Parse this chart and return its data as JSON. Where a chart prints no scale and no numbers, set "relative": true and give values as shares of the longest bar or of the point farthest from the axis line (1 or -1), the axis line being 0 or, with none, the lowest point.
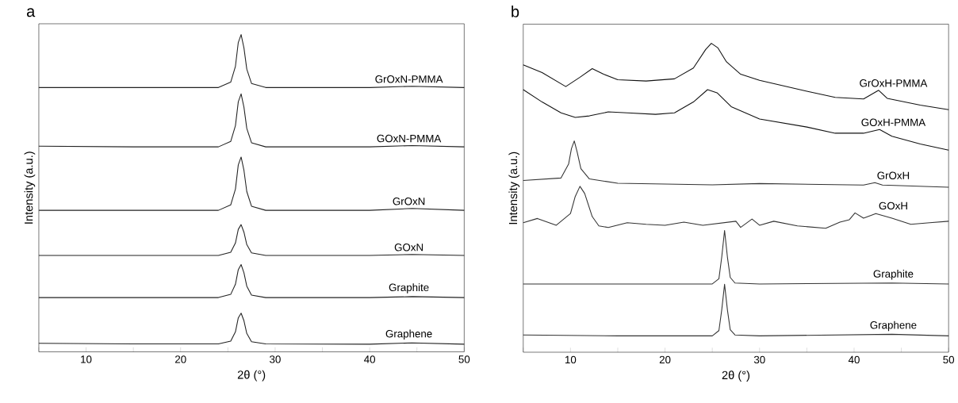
{
  "chart_data": [
    {
      "type": "line",
      "title": "a",
      "xlabel": "2θ (°)",
      "ylabel": "Intensity (a.u.)",
      "relative": true,
      "xlim": [
        5,
        50
      ],
      "xticks": [
        {
          "value": 5,
          "label": null
        },
        10,
        {
          "value": 15,
          "label": null
        },
        20,
        {
          "value": 25,
          "label": null
        },
        30,
        {
          "value": 35,
          "label": null
        },
        40,
        {
          "value": 45,
          "label": null
        },
        50
      ],
      "x": [
        5,
        15,
        24,
        25.3,
        25.8,
        26.1,
        26.4,
        26.7,
        27.0,
        27.5,
        29,
        40,
        44.5,
        50
      ],
      "series": [
        {
          "name": "GrOxN-PMMA",
          "color": "#222222",
          "values": [
            0.833,
            0.833,
            0.833,
            0.85,
            0.9,
            0.975,
            1.0,
            0.958,
            0.891,
            0.846,
            0.833,
            0.833,
            0.837,
            0.833
          ]
        },
        {
          "name": "GOxN-PMMA",
          "color": "#222222",
          "values": [
            0.648,
            0.646,
            0.646,
            0.663,
            0.713,
            0.788,
            0.813,
            0.771,
            0.704,
            0.659,
            0.646,
            0.646,
            0.65,
            0.646
          ]
        },
        {
          "name": "GrOxN",
          "color": "#222222",
          "values": [
            0.446,
            0.446,
            0.446,
            0.463,
            0.513,
            0.589,
            0.614,
            0.572,
            0.505,
            0.459,
            0.446,
            0.446,
            0.452,
            0.446
          ]
        },
        {
          "name": "GOxN",
          "color": "#222222",
          "values": [
            0.304,
            0.304,
            0.304,
            0.314,
            0.343,
            0.386,
            0.401,
            0.377,
            0.338,
            0.312,
            0.304,
            0.304,
            0.307,
            0.304
          ]
        },
        {
          "name": "Graphite",
          "color": "#222222",
          "values": [
            0.171,
            0.171,
            0.171,
            0.181,
            0.213,
            0.259,
            0.275,
            0.249,
            0.207,
            0.179,
            0.171,
            0.171,
            0.174,
            0.171
          ]
        },
        {
          "name": "Graphene",
          "color": "#222222",
          "values": [
            0.027,
            0.025,
            0.025,
            0.034,
            0.063,
            0.107,
            0.122,
            0.098,
            0.058,
            0.032,
            0.025,
            0.024,
            0.028,
            0.024
          ]
        }
      ]
    },
    {
      "type": "line",
      "title": "b",
      "xlabel": "2θ (°)",
      "ylabel": "Intensity (a.u.)",
      "relative": true,
      "xlim": [
        5,
        50
      ],
      "xticks": [
        {
          "value": 5,
          "label": null
        },
        10,
        {
          "value": 15,
          "label": null
        },
        20,
        {
          "value": 25,
          "label": null
        },
        30,
        {
          "value": 35,
          "label": null
        },
        40,
        {
          "value": 45,
          "label": null
        },
        50
      ],
      "series": [
        {
          "name": "GrOxH-PMMA",
          "color": "#111111",
          "x": [
            5,
            7,
            9.5,
            11,
            12.3,
            13.5,
            15,
            18,
            21,
            23,
            24.3,
            24.9,
            25.6,
            26.5,
            28,
            30,
            35,
            38,
            41,
            42.6,
            43.5,
            47,
            50
          ],
          "values": [
            0.93,
            0.905,
            0.86,
            0.89,
            0.918,
            0.9,
            0.882,
            0.878,
            0.885,
            0.92,
            0.98,
            1.0,
            0.985,
            0.94,
            0.9,
            0.88,
            0.845,
            0.825,
            0.82,
            0.848,
            0.822,
            0.8,
            0.785
          ]
        },
        {
          "name": "GOxH-PMMA",
          "color": "#111111",
          "x": [
            5,
            7,
            9,
            10.5,
            12,
            14,
            16,
            19,
            21,
            23,
            24.5,
            25.5,
            27,
            30,
            35,
            38,
            41,
            42.7,
            44,
            47,
            50
          ],
          "values": [
            0.85,
            0.81,
            0.775,
            0.76,
            0.765,
            0.778,
            0.775,
            0.77,
            0.775,
            0.81,
            0.85,
            0.84,
            0.795,
            0.755,
            0.729,
            0.709,
            0.709,
            0.721,
            0.699,
            0.674,
            0.654
          ]
        },
        {
          "name": "GrOxH",
          "color": "#333333",
          "x": [
            5,
            9,
            9.8,
            10.1,
            10.4,
            10.7,
            11.1,
            12,
            15,
            25,
            30,
            41,
            42.2,
            43,
            50
          ],
          "values": [
            0.556,
            0.564,
            0.609,
            0.659,
            0.684,
            0.649,
            0.594,
            0.561,
            0.547,
            0.542,
            0.546,
            0.541,
            0.549,
            0.541,
            0.534
          ]
        },
        {
          "name": "GOxH",
          "color": "#333333",
          "x": [
            5,
            6.5,
            8.5,
            10,
            10.5,
            11,
            11.5,
            12.3,
            13,
            14,
            16,
            18,
            20,
            22,
            24,
            27.5,
            28,
            29.2,
            30,
            31.5,
            34,
            37,
            38.5,
            39.5,
            40.1,
            41,
            42.3,
            44,
            46,
            48,
            50
          ],
          "values": [
            0.419,
            0.433,
            0.411,
            0.449,
            0.504,
            0.537,
            0.514,
            0.439,
            0.409,
            0.404,
            0.419,
            0.414,
            0.411,
            0.421,
            0.411,
            0.424,
            0.404,
            0.431,
            0.411,
            0.424,
            0.409,
            0.401,
            0.421,
            0.429,
            0.451,
            0.434,
            0.449,
            0.434,
            0.414,
            0.419,
            0.424
          ]
        },
        {
          "name": "Graphite",
          "color": "#333333",
          "x": [
            5,
            15,
            25,
            25.7,
            26.0,
            26.3,
            26.6,
            26.9,
            27.4,
            30,
            44,
            50
          ],
          "values": [
            0.221,
            0.221,
            0.221,
            0.238,
            0.308,
            0.394,
            0.308,
            0.242,
            0.224,
            0.221,
            0.224,
            0.221
          ]
        },
        {
          "name": "Graphene",
          "color": "#333333",
          "x": [
            5,
            15,
            25,
            25.7,
            26.0,
            26.3,
            26.6,
            26.9,
            27.4,
            30,
            44,
            50
          ],
          "values": [
            0.056,
            0.053,
            0.053,
            0.07,
            0.137,
            0.22,
            0.137,
            0.073,
            0.056,
            0.053,
            0.058,
            0.053
          ]
        }
      ]
    }
  ]
}
